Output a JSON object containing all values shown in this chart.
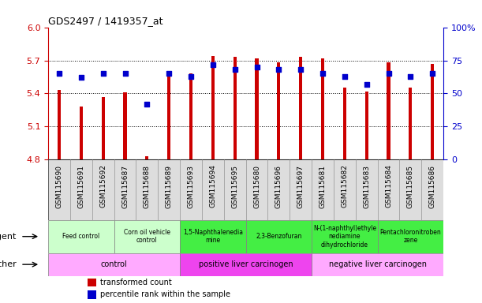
{
  "title": "GDS2497 / 1419357_at",
  "samples": [
    "GSM115690",
    "GSM115691",
    "GSM115692",
    "GSM115687",
    "GSM115688",
    "GSM115689",
    "GSM115693",
    "GSM115694",
    "GSM115695",
    "GSM115680",
    "GSM115696",
    "GSM115697",
    "GSM115681",
    "GSM115682",
    "GSM115683",
    "GSM115684",
    "GSM115685",
    "GSM115686"
  ],
  "transformed_count": [
    5.43,
    5.28,
    5.37,
    5.41,
    4.83,
    5.58,
    5.58,
    5.74,
    5.73,
    5.72,
    5.68,
    5.73,
    5.72,
    5.45,
    5.42,
    5.68,
    5.45,
    5.67
  ],
  "percentile_rank": [
    65,
    62,
    65,
    65,
    42,
    65,
    63,
    72,
    68,
    70,
    68,
    68,
    65,
    63,
    57,
    65,
    63,
    65
  ],
  "ymin": 4.8,
  "ymax": 6.0,
  "yticks": [
    4.8,
    5.1,
    5.4,
    5.7,
    6.0
  ],
  "right_yticks": [
    0,
    25,
    50,
    75,
    100
  ],
  "bar_color": "#cc0000",
  "dot_color": "#0000cc",
  "agent_groups": [
    {
      "label": "Feed control",
      "start": 0,
      "end": 3,
      "color": "#ccffcc"
    },
    {
      "label": "Corn oil vehicle\ncontrol",
      "start": 3,
      "end": 6,
      "color": "#ccffcc"
    },
    {
      "label": "1,5-Naphthalenedia\nmine",
      "start": 6,
      "end": 9,
      "color": "#44ee44"
    },
    {
      "label": "2,3-Benzofuran",
      "start": 9,
      "end": 12,
      "color": "#44ee44"
    },
    {
      "label": "N-(1-naphthyl)ethyle\nnediamine\ndihydrochloride",
      "start": 12,
      "end": 15,
      "color": "#44ee44"
    },
    {
      "label": "Pentachloronitroben\nzene",
      "start": 15,
      "end": 18,
      "color": "#44ee44"
    }
  ],
  "other_groups": [
    {
      "label": "control",
      "start": 0,
      "end": 6,
      "color": "#ffaaff"
    },
    {
      "label": "positive liver carcinogen",
      "start": 6,
      "end": 12,
      "color": "#ee44ee"
    },
    {
      "label": "negative liver carcinogen",
      "start": 12,
      "end": 18,
      "color": "#ffaaff"
    }
  ],
  "bar_width": 0.15,
  "dot_size": 25,
  "background_color": "#ffffff",
  "plot_bg_color": "#ffffff",
  "tick_label_color": "#cc0000",
  "right_tick_color": "#0000cc",
  "xtick_bg_color": "#dddddd",
  "legend_bar_color": "#cc0000",
  "legend_dot_color": "#0000cc"
}
